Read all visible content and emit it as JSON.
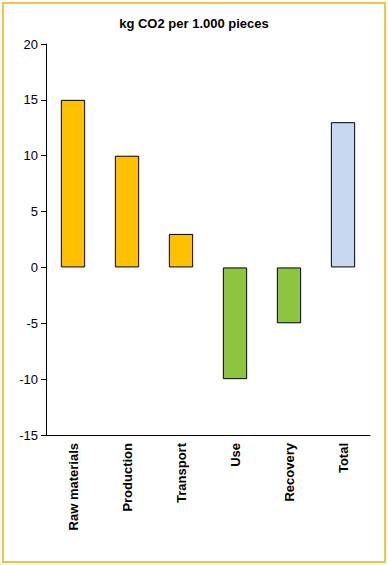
{
  "chart_data": {
    "type": "bar",
    "title": "kg CO2 per 1.000 pieces",
    "categories": [
      "Raw materials",
      "Production",
      "Transport",
      "Use",
      "Recovery",
      "Total"
    ],
    "values": [
      15,
      10,
      3,
      -10,
      -5,
      13
    ],
    "colors": [
      "#ffc000",
      "#ffc000",
      "#ffc000",
      "#8cc63f",
      "#8cc63f",
      "#c6d9f1"
    ],
    "ylim": [
      -15,
      20
    ],
    "yticks": [
      -15,
      -10,
      -5,
      0,
      5,
      10,
      15,
      20
    ],
    "grid": false
  }
}
